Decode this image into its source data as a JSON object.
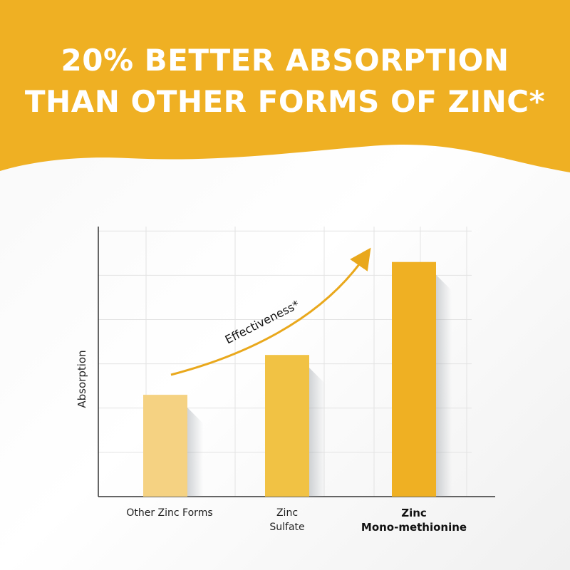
{
  "chart_data": {
    "type": "bar",
    "title": "20% BETTER ABSORPTION\nTHAN OTHER FORMS OF ZINC*",
    "y_label": "Absorption",
    "annotation": "Effectiveness*",
    "categories": [
      "Other Zinc Forms",
      "Zinc\nSulfate",
      "Zinc\nMono-methionine"
    ],
    "values": [
      2.3,
      3.2,
      5.3
    ],
    "colors": [
      "#f5d282",
      "#f1c244",
      "#efb023"
    ],
    "highlight": 2,
    "ylim": [
      0,
      6.1
    ],
    "yticks": [
      1,
      2,
      3,
      4,
      5,
      6
    ],
    "grid": true
  }
}
